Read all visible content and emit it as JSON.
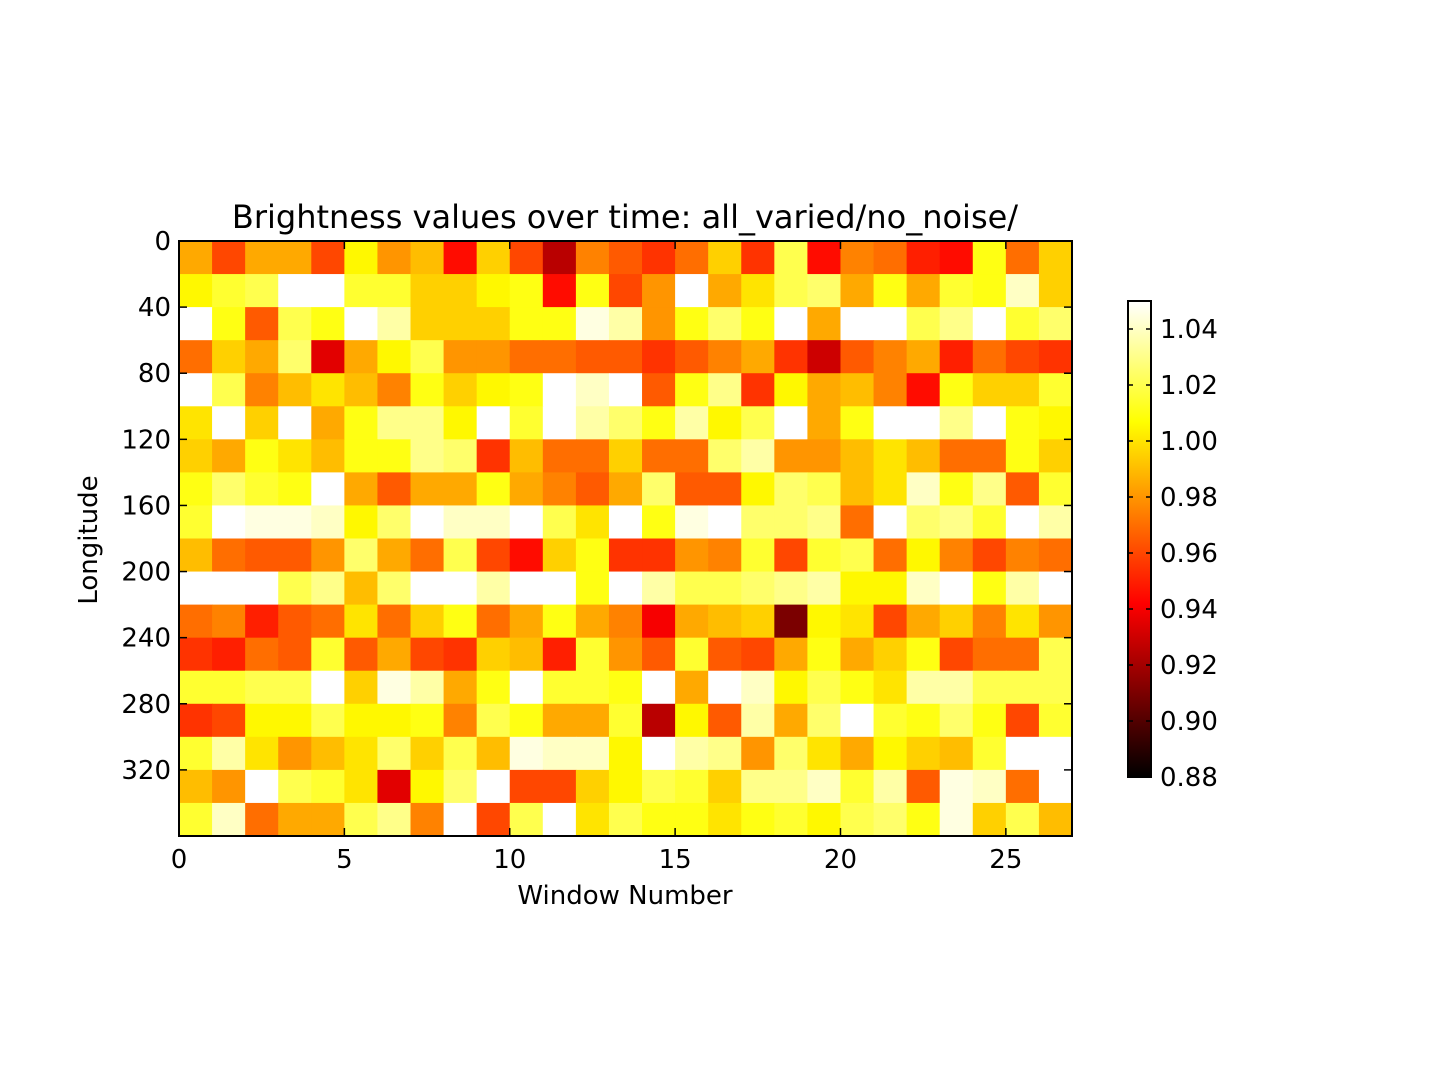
{
  "chart_data": {
    "type": "heatmap",
    "title": "Brightness values over time: all_varied/no_noise/",
    "xlabel": "Window Number",
    "ylabel": "Longitude",
    "xlim": [
      0,
      27
    ],
    "ylim": [
      360,
      0
    ],
    "x_ticks": [
      0,
      5,
      10,
      15,
      20,
      25
    ],
    "y_ticks": [
      0,
      40,
      80,
      120,
      160,
      200,
      240,
      280,
      320
    ],
    "n_cols": 27,
    "n_rows": 18,
    "row_height": 20,
    "colormap": "hot",
    "colorbar": {
      "min": 0.88,
      "max": 1.05,
      "ticks": [
        "0.88",
        "0.90",
        "0.92",
        "0.94",
        "0.96",
        "0.98",
        "1.00",
        "1.02",
        "1.04"
      ]
    },
    "values": [
      [
        0.985,
        0.96,
        0.985,
        0.985,
        0.96,
        1.005,
        0.98,
        0.99,
        0.945,
        0.995,
        0.96,
        0.925,
        0.975,
        0.965,
        0.955,
        0.97,
        0.995,
        0.955,
        1.02,
        0.945,
        0.975,
        0.97,
        0.95,
        0.945,
        1.01,
        0.97,
        0.995
      ],
      [
        1.005,
        1.015,
        1.02,
        1.05,
        1.05,
        1.015,
        1.015,
        0.995,
        0.995,
        1.005,
        1.01,
        0.945,
        1.01,
        0.96,
        0.98,
        1.05,
        0.985,
        1.0,
        1.02,
        1.025,
        0.985,
        1.01,
        0.985,
        1.015,
        1.01,
        1.04,
        0.995
      ],
      [
        1.05,
        1.01,
        0.965,
        1.02,
        1.01,
        1.05,
        1.035,
        0.995,
        0.995,
        0.995,
        1.01,
        1.01,
        1.045,
        1.035,
        0.98,
        1.01,
        1.025,
        1.01,
        1.05,
        0.985,
        1.05,
        1.05,
        1.02,
        1.03,
        1.05,
        1.015,
        1.025
      ],
      [
        0.97,
        0.995,
        0.985,
        1.025,
        0.935,
        0.985,
        1.005,
        1.02,
        0.98,
        0.98,
        0.97,
        0.97,
        0.965,
        0.965,
        0.955,
        0.965,
        0.975,
        0.985,
        0.955,
        0.93,
        0.965,
        0.975,
        0.985,
        0.95,
        0.97,
        0.96,
        0.955
      ],
      [
        1.05,
        1.02,
        0.975,
        0.99,
        1.0,
        0.99,
        0.975,
        1.01,
        0.995,
        1.005,
        1.01,
        1.05,
        1.04,
        1.05,
        0.965,
        1.01,
        1.03,
        0.955,
        1.005,
        0.985,
        0.99,
        0.975,
        0.945,
        1.01,
        0.995,
        0.995,
        1.015
      ],
      [
        1.0,
        1.05,
        0.995,
        1.05,
        0.985,
        1.01,
        1.03,
        1.03,
        1.005,
        1.05,
        1.015,
        1.05,
        1.035,
        1.025,
        1.01,
        1.035,
        1.005,
        1.02,
        1.05,
        0.985,
        1.01,
        1.05,
        1.05,
        1.03,
        1.05,
        1.01,
        1.005
      ],
      [
        0.995,
        0.985,
        1.01,
        1.0,
        0.99,
        1.01,
        1.01,
        1.03,
        1.025,
        0.955,
        0.99,
        0.97,
        0.97,
        0.995,
        0.97,
        0.97,
        1.025,
        1.035,
        0.98,
        0.98,
        0.99,
        1.0,
        0.99,
        0.97,
        0.97,
        1.01,
        0.995
      ],
      [
        1.01,
        1.025,
        1.015,
        1.01,
        1.05,
        0.985,
        0.965,
        0.985,
        0.985,
        1.01,
        0.985,
        0.975,
        0.965,
        0.985,
        1.025,
        0.965,
        0.965,
        1.005,
        1.025,
        1.02,
        0.99,
        1.0,
        1.04,
        1.01,
        1.03,
        0.965,
        1.015
      ],
      [
        1.015,
        1.05,
        1.045,
        1.045,
        1.04,
        1.005,
        1.025,
        1.05,
        1.04,
        1.04,
        1.05,
        1.02,
        1.0,
        1.05,
        1.01,
        1.045,
        1.05,
        1.025,
        1.025,
        1.03,
        0.97,
        1.05,
        1.025,
        1.03,
        1.015,
        1.05,
        1.035
      ],
      [
        0.99,
        0.97,
        0.965,
        0.965,
        0.98,
        1.025,
        0.985,
        0.97,
        1.02,
        0.96,
        0.945,
        0.995,
        1.01,
        0.955,
        0.955,
        0.98,
        0.975,
        1.015,
        0.96,
        1.015,
        1.02,
        0.97,
        1.005,
        0.975,
        0.96,
        0.975,
        0.97
      ],
      [
        1.05,
        1.05,
        1.05,
        1.02,
        1.03,
        0.99,
        1.025,
        1.05,
        1.05,
        1.035,
        1.05,
        1.05,
        1.01,
        1.05,
        1.035,
        1.02,
        1.02,
        1.025,
        1.03,
        1.035,
        1.005,
        1.005,
        1.04,
        1.05,
        1.01,
        1.035,
        1.05
      ],
      [
        0.97,
        0.975,
        0.95,
        0.965,
        0.97,
        1.0,
        0.97,
        0.995,
        1.01,
        0.97,
        0.985,
        1.01,
        0.985,
        0.975,
        0.94,
        0.985,
        0.99,
        0.995,
        0.91,
        1.005,
        1.0,
        0.96,
        0.985,
        0.995,
        0.975,
        1.0,
        0.98
      ],
      [
        0.955,
        0.95,
        0.97,
        0.965,
        1.015,
        0.965,
        0.985,
        0.96,
        0.955,
        0.995,
        0.99,
        0.95,
        1.015,
        0.98,
        0.965,
        1.015,
        0.965,
        0.96,
        0.985,
        1.01,
        0.985,
        0.995,
        1.01,
        0.96,
        0.97,
        0.97,
        1.02
      ],
      [
        1.015,
        1.015,
        1.02,
        1.02,
        1.05,
        0.995,
        1.045,
        1.035,
        0.985,
        1.01,
        1.05,
        1.015,
        1.015,
        1.01,
        1.05,
        0.985,
        1.05,
        1.04,
        1.005,
        1.02,
        1.01,
        1.0,
        1.035,
        1.035,
        1.02,
        1.02,
        1.02
      ],
      [
        0.955,
        0.96,
        1.005,
        1.005,
        1.02,
        1.005,
        1.005,
        1.01,
        0.975,
        1.02,
        1.01,
        0.985,
        0.985,
        1.015,
        0.925,
        1.005,
        0.965,
        1.035,
        0.985,
        1.025,
        1.05,
        1.015,
        1.01,
        1.025,
        1.01,
        0.96,
        1.015
      ],
      [
        1.015,
        1.035,
        1.0,
        0.98,
        0.99,
        1.0,
        1.025,
        0.995,
        1.02,
        0.99,
        1.045,
        1.04,
        1.04,
        1.005,
        1.05,
        1.035,
        1.03,
        0.98,
        1.025,
        1.0,
        0.985,
        1.005,
        0.995,
        0.99,
        1.015,
        1.05,
        1.05
      ],
      [
        0.99,
        0.98,
        1.05,
        1.02,
        1.015,
        1.0,
        0.935,
        1.005,
        1.025,
        1.05,
        0.96,
        0.96,
        0.995,
        1.005,
        1.02,
        1.015,
        0.995,
        1.03,
        1.03,
        1.04,
        1.015,
        1.035,
        0.965,
        1.045,
        1.04,
        0.97,
        1.05
      ],
      [
        1.015,
        1.04,
        0.97,
        0.985,
        0.985,
        1.02,
        1.03,
        0.975,
        1.05,
        0.96,
        1.02,
        1.05,
        1.0,
        1.02,
        1.01,
        1.01,
        1.0,
        1.01,
        1.015,
        1.005,
        1.02,
        1.025,
        1.01,
        1.045,
        0.995,
        1.02,
        0.99
      ]
    ]
  }
}
